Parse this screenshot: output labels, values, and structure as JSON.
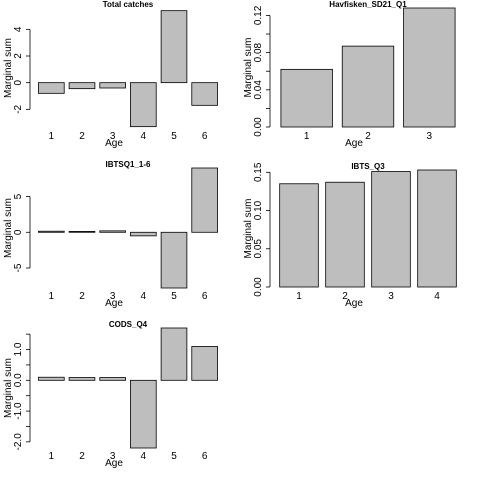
{
  "chart_data": [
    {
      "type": "bar",
      "title": "Total catches",
      "xlabel": "Age",
      "ylabel": "Marginal sum",
      "categories": [
        "1",
        "2",
        "3",
        "4",
        "5",
        "6"
      ],
      "values": [
        -0.8,
        -0.45,
        -0.4,
        -3.3,
        5.4,
        -1.7
      ],
      "ylim": [
        -3.4,
        5.6
      ],
      "yticks": [
        -2,
        0,
        2,
        4
      ],
      "ytick_labels": [
        "-2",
        "0",
        "2",
        "4"
      ]
    },
    {
      "type": "bar",
      "title": "Havfisken_SD21_Q1",
      "xlabel": "Age",
      "ylabel": "Marginal sum",
      "categories": [
        "1",
        "2",
        "3"
      ],
      "values": [
        0.062,
        0.087,
        0.128
      ],
      "ylim": [
        0,
        0.128
      ],
      "yticks": [
        0,
        0.02,
        0.04,
        0.06,
        0.08,
        0.1,
        0.12
      ],
      "ytick_labels": [
        "0.00",
        "",
        "0.04",
        "",
        "0.08",
        "",
        "0.12"
      ]
    },
    {
      "type": "bar",
      "title": "IBTSQ1_1-6",
      "xlabel": "Age",
      "ylabel": "Marginal sum",
      "categories": [
        "1",
        "2",
        "3",
        "4",
        "5",
        "6"
      ],
      "values": [
        0.15,
        0.12,
        0.2,
        -0.5,
        -7.8,
        9.0
      ],
      "ylim": [
        -7.8,
        9.0
      ],
      "yticks": [
        -5,
        0,
        5
      ],
      "ytick_labels": [
        "-5",
        "0",
        "5"
      ]
    },
    {
      "type": "bar",
      "title": "IBTS_Q3",
      "xlabel": "Age",
      "ylabel": "Marginal sum",
      "categories": [
        "1",
        "2",
        "3",
        "4"
      ],
      "values": [
        0.135,
        0.137,
        0.151,
        0.153
      ],
      "ylim": [
        0,
        0.153
      ],
      "yticks": [
        0,
        0.05,
        0.1,
        0.15
      ],
      "ytick_labels": [
        "0.00",
        "0.05",
        "0.10",
        "0.15"
      ]
    },
    {
      "type": "bar",
      "title": "CODS_Q4",
      "xlabel": "Age",
      "ylabel": "Marginal sum",
      "categories": [
        "1",
        "2",
        "3",
        "4",
        "5",
        "6"
      ],
      "values": [
        0.1,
        0.09,
        0.09,
        -2.2,
        1.7,
        1.1
      ],
      "ylim": [
        -2.2,
        1.7
      ],
      "yticks": [
        -2.0,
        -1.5,
        -1.0,
        -0.5,
        0.0,
        0.5,
        1.0,
        1.5
      ],
      "ytick_labels": [
        "-2.0",
        "",
        "-1.0",
        "",
        "0.0",
        "",
        "1.0",
        ""
      ]
    }
  ]
}
